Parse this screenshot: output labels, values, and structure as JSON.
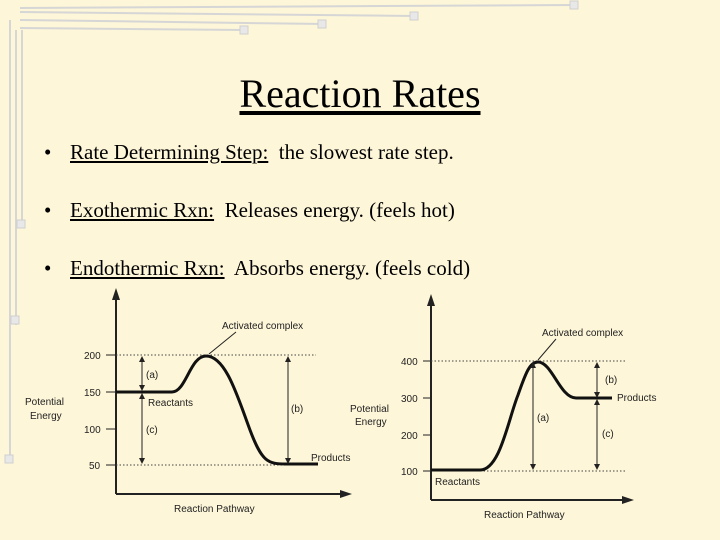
{
  "title": "Reaction Rates",
  "bullets": [
    {
      "marker": "•",
      "term": "Rate Determining Step:",
      "definition": "the slowest rate step."
    },
    {
      "marker": "•",
      "term": "Exothermic Rxn:",
      "definition": "Releases energy. (feels hot)"
    },
    {
      "marker": "•",
      "term": "Endothermic Rxn:",
      "definition": "Absorbs energy. (feels cold)"
    }
  ],
  "diagrams": {
    "exothermic": {
      "ylabel_line1": "Potential",
      "ylabel_line2": "Energy",
      "xlabel": "Reaction Pathway",
      "ticks": [
        "200",
        "150",
        "100",
        "50"
      ],
      "activated_complex": "Activated complex",
      "reactants": "Reactants",
      "products": "Products",
      "label_a": "(a)",
      "label_b": "(b)",
      "label_c": "(c)",
      "levels": {
        "complex": 200,
        "reactants": 150,
        "products": 50
      }
    },
    "endothermic": {
      "ylabel_line1": "Potential",
      "ylabel_line2": "Energy",
      "xlabel": "Reaction Pathway",
      "ticks": [
        "400",
        "300",
        "200",
        "100"
      ],
      "activated_complex": "Activated complex",
      "reactants": "Reactants",
      "products": "Products",
      "label_a": "(a)",
      "label_b": "(b)",
      "label_c": "(c)",
      "levels": {
        "complex": 400,
        "reactants": 100,
        "products": 300
      }
    }
  },
  "colors": {
    "background": "#fdf6d8",
    "decoration": "#d8d8d8",
    "text": "#000000"
  }
}
